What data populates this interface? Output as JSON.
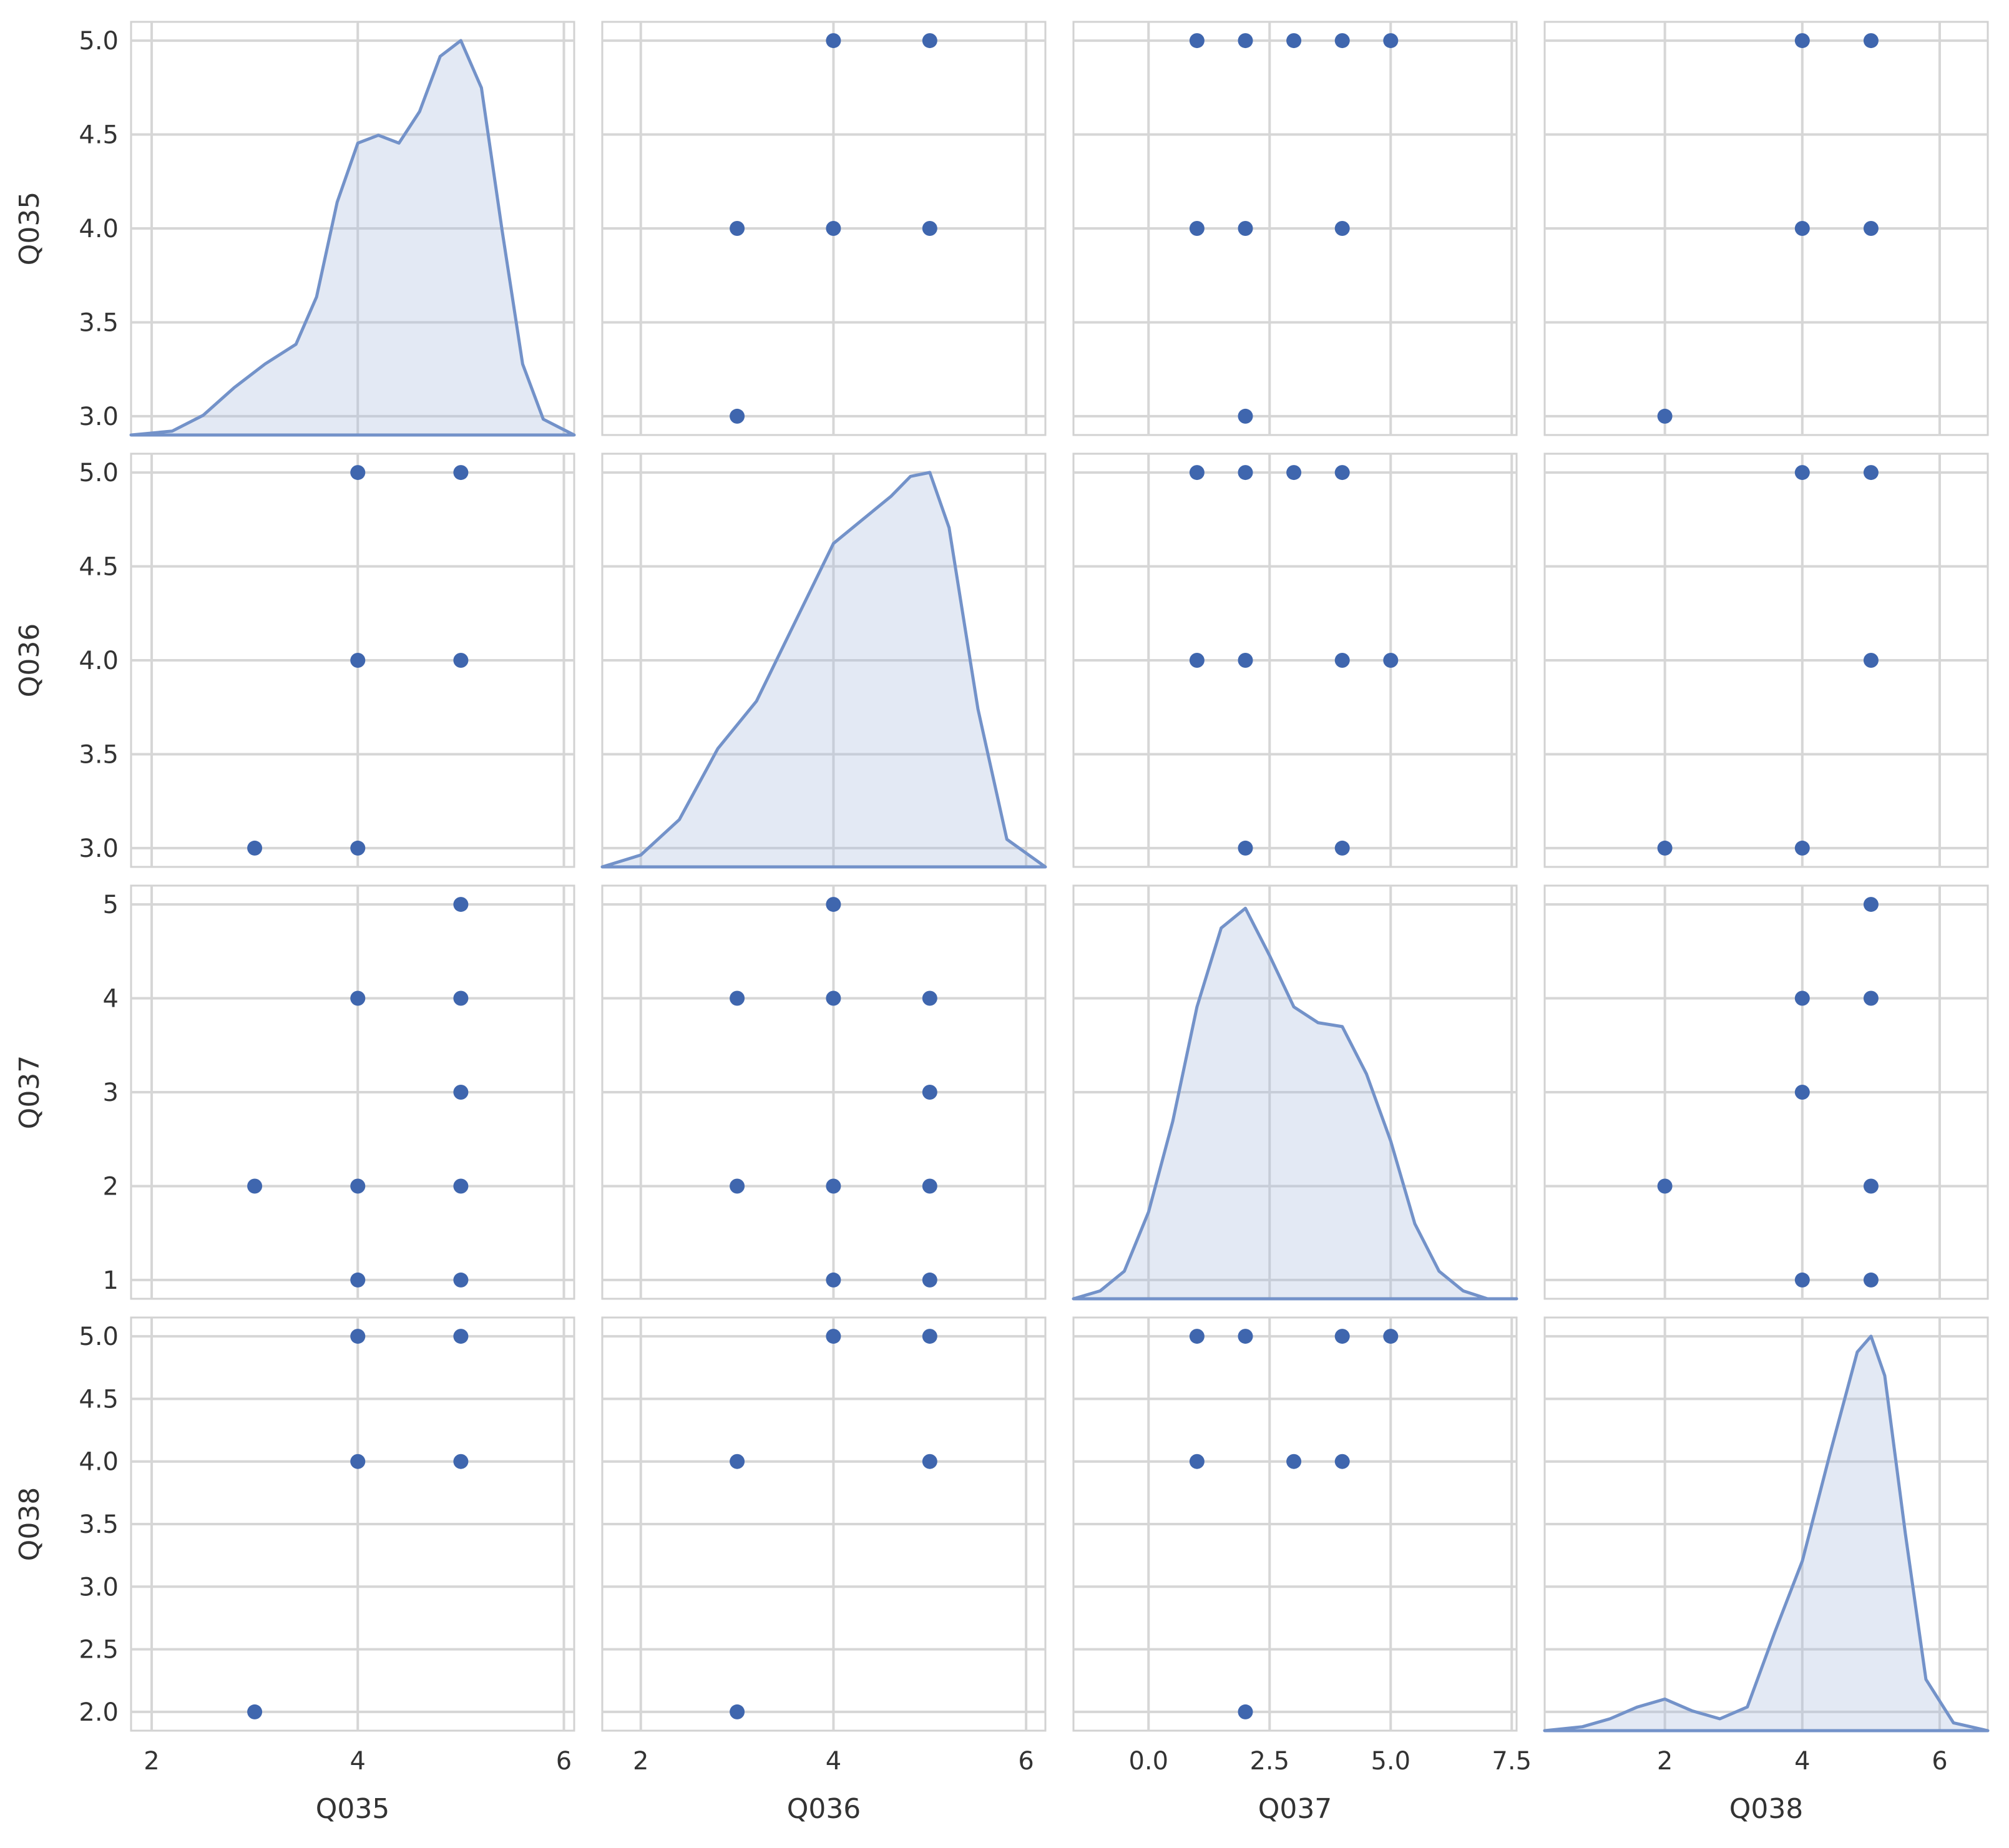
{
  "chart_data": {
    "type": "scatter",
    "subtype": "pairplot",
    "variables": [
      "Q035",
      "Q036",
      "Q037",
      "Q038"
    ],
    "diagonal": "kde",
    "grid": true,
    "colors": {
      "marker": "#3F66AE",
      "kde_line": "#7392C9",
      "kde_fill": "#A9BCDD",
      "grid": "#D6D6D6",
      "frame": "#D2D2D2",
      "text": "#333333"
    },
    "x_axes": [
      {
        "variable": "Q035",
        "label": "Q035",
        "range": [
          1.8,
          6.1
        ],
        "ticks": [
          "2",
          "4",
          "6"
        ]
      },
      {
        "variable": "Q036",
        "label": "Q036",
        "range": [
          1.6,
          6.2
        ],
        "ticks": [
          "2",
          "4",
          "6"
        ]
      },
      {
        "variable": "Q037",
        "label": "Q037",
        "range": [
          -1.55,
          7.6
        ],
        "ticks": [
          "0.0",
          "2.5",
          "5.0",
          "7.5"
        ]
      },
      {
        "variable": "Q038",
        "label": "Q038",
        "range": [
          0.25,
          6.7
        ],
        "ticks": [
          "2",
          "4",
          "6"
        ]
      }
    ],
    "y_axes": [
      {
        "variable": "Q035",
        "label": "Q035",
        "range": [
          2.9,
          5.1
        ],
        "ticks": [
          "3.0",
          "3.5",
          "4.0",
          "4.5",
          "5.0"
        ]
      },
      {
        "variable": "Q036",
        "label": "Q036",
        "range": [
          2.9,
          5.1
        ],
        "ticks": [
          "3.0",
          "3.5",
          "4.0",
          "4.5",
          "5.0"
        ]
      },
      {
        "variable": "Q037",
        "label": "Q037",
        "range": [
          0.8,
          5.2
        ],
        "ticks": [
          "1",
          "2",
          "3",
          "4",
          "5"
        ]
      },
      {
        "variable": "Q038",
        "label": "Q038",
        "range": [
          1.85,
          5.15
        ],
        "ticks": [
          "2.0",
          "2.5",
          "3.0",
          "3.5",
          "4.0",
          "4.5",
          "5.0"
        ]
      }
    ],
    "kde_curves": [
      {
        "variable": "Q035",
        "x": [
          1.8,
          2.2,
          2.5,
          2.8,
          3.1,
          3.4,
          3.6,
          3.8,
          4.0,
          4.2,
          4.4,
          4.6,
          4.8,
          5.0,
          5.2,
          5.4,
          5.6,
          5.8,
          6.1
        ],
        "density": [
          0.0,
          0.01,
          0.05,
          0.12,
          0.18,
          0.23,
          0.35,
          0.59,
          0.74,
          0.76,
          0.74,
          0.82,
          0.96,
          1.0,
          0.88,
          0.52,
          0.18,
          0.04,
          0.0
        ]
      },
      {
        "variable": "Q036",
        "x": [
          1.6,
          2.0,
          2.4,
          2.8,
          3.2,
          3.6,
          4.0,
          4.3,
          4.6,
          4.8,
          5.0,
          5.2,
          5.5,
          5.8,
          6.2
        ],
        "density": [
          0.0,
          0.03,
          0.12,
          0.3,
          0.42,
          0.62,
          0.82,
          0.88,
          0.94,
          0.99,
          1.0,
          0.86,
          0.4,
          0.07,
          0.0
        ]
      },
      {
        "variable": "Q037",
        "x": [
          -1.55,
          -1.0,
          -0.5,
          0.0,
          0.5,
          1.0,
          1.5,
          2.0,
          2.5,
          3.0,
          3.5,
          4.0,
          4.5,
          5.0,
          5.5,
          6.0,
          6.5,
          7.0,
          7.6
        ],
        "density": [
          0.0,
          0.02,
          0.07,
          0.22,
          0.45,
          0.74,
          0.94,
          0.99,
          0.87,
          0.74,
          0.7,
          0.69,
          0.57,
          0.4,
          0.19,
          0.07,
          0.02,
          0.0,
          0.0
        ]
      },
      {
        "variable": "Q038",
        "x": [
          0.25,
          0.8,
          1.2,
          1.6,
          2.0,
          2.4,
          2.8,
          3.2,
          3.6,
          4.0,
          4.4,
          4.8,
          5.0,
          5.2,
          5.5,
          5.8,
          6.2,
          6.7
        ],
        "density": [
          0.0,
          0.01,
          0.03,
          0.06,
          0.08,
          0.05,
          0.03,
          0.06,
          0.25,
          0.43,
          0.7,
          0.96,
          1.0,
          0.9,
          0.5,
          0.13,
          0.02,
          0.0
        ]
      }
    ],
    "scatter": [
      {
        "row": 0,
        "col": 1,
        "points": [
          [
            4,
            5
          ],
          [
            5,
            5
          ],
          [
            3,
            4
          ],
          [
            4,
            4
          ],
          [
            5,
            4
          ],
          [
            3,
            3
          ]
        ]
      },
      {
        "row": 0,
        "col": 2,
        "points": [
          [
            1,
            5
          ],
          [
            2,
            5
          ],
          [
            3,
            5
          ],
          [
            4,
            5
          ],
          [
            5,
            5
          ],
          [
            1,
            4
          ],
          [
            2,
            4
          ],
          [
            4,
            4
          ],
          [
            2,
            3
          ]
        ]
      },
      {
        "row": 0,
        "col": 3,
        "points": [
          [
            4,
            5
          ],
          [
            5,
            5
          ],
          [
            4,
            4
          ],
          [
            5,
            4
          ],
          [
            2,
            3
          ]
        ]
      },
      {
        "row": 1,
        "col": 0,
        "points": [
          [
            4,
            5
          ],
          [
            5,
            5
          ],
          [
            4,
            4
          ],
          [
            5,
            4
          ],
          [
            3,
            3
          ],
          [
            4,
            3
          ]
        ]
      },
      {
        "row": 1,
        "col": 2,
        "points": [
          [
            1,
            5
          ],
          [
            2,
            5
          ],
          [
            3,
            5
          ],
          [
            4,
            5
          ],
          [
            1,
            4
          ],
          [
            2,
            4
          ],
          [
            4,
            4
          ],
          [
            5,
            4
          ],
          [
            2,
            3
          ],
          [
            4,
            3
          ]
        ]
      },
      {
        "row": 1,
        "col": 3,
        "points": [
          [
            4,
            5
          ],
          [
            5,
            5
          ],
          [
            5,
            4
          ],
          [
            2,
            3
          ],
          [
            4,
            3
          ]
        ]
      },
      {
        "row": 2,
        "col": 0,
        "points": [
          [
            5,
            5
          ],
          [
            4,
            4
          ],
          [
            5,
            4
          ],
          [
            5,
            3
          ],
          [
            3,
            2
          ],
          [
            4,
            2
          ],
          [
            5,
            2
          ],
          [
            4,
            1
          ],
          [
            5,
            1
          ]
        ]
      },
      {
        "row": 2,
        "col": 1,
        "points": [
          [
            4,
            5
          ],
          [
            3,
            4
          ],
          [
            4,
            4
          ],
          [
            5,
            4
          ],
          [
            5,
            3
          ],
          [
            3,
            2
          ],
          [
            4,
            2
          ],
          [
            5,
            2
          ],
          [
            4,
            1
          ],
          [
            5,
            1
          ]
        ]
      },
      {
        "row": 2,
        "col": 3,
        "points": [
          [
            5,
            5
          ],
          [
            4,
            4
          ],
          [
            5,
            4
          ],
          [
            4,
            3
          ],
          [
            2,
            2
          ],
          [
            5,
            2
          ],
          [
            4,
            1
          ],
          [
            5,
            1
          ]
        ]
      },
      {
        "row": 3,
        "col": 0,
        "points": [
          [
            4,
            5
          ],
          [
            5,
            5
          ],
          [
            4,
            4
          ],
          [
            5,
            4
          ],
          [
            3,
            2
          ]
        ]
      },
      {
        "row": 3,
        "col": 1,
        "points": [
          [
            4,
            5
          ],
          [
            5,
            5
          ],
          [
            3,
            4
          ],
          [
            5,
            4
          ],
          [
            3,
            2
          ]
        ]
      },
      {
        "row": 3,
        "col": 2,
        "points": [
          [
            1,
            5
          ],
          [
            2,
            5
          ],
          [
            4,
            5
          ],
          [
            5,
            5
          ],
          [
            1,
            4
          ],
          [
            3,
            4
          ],
          [
            4,
            4
          ],
          [
            2,
            2
          ]
        ]
      }
    ]
  }
}
